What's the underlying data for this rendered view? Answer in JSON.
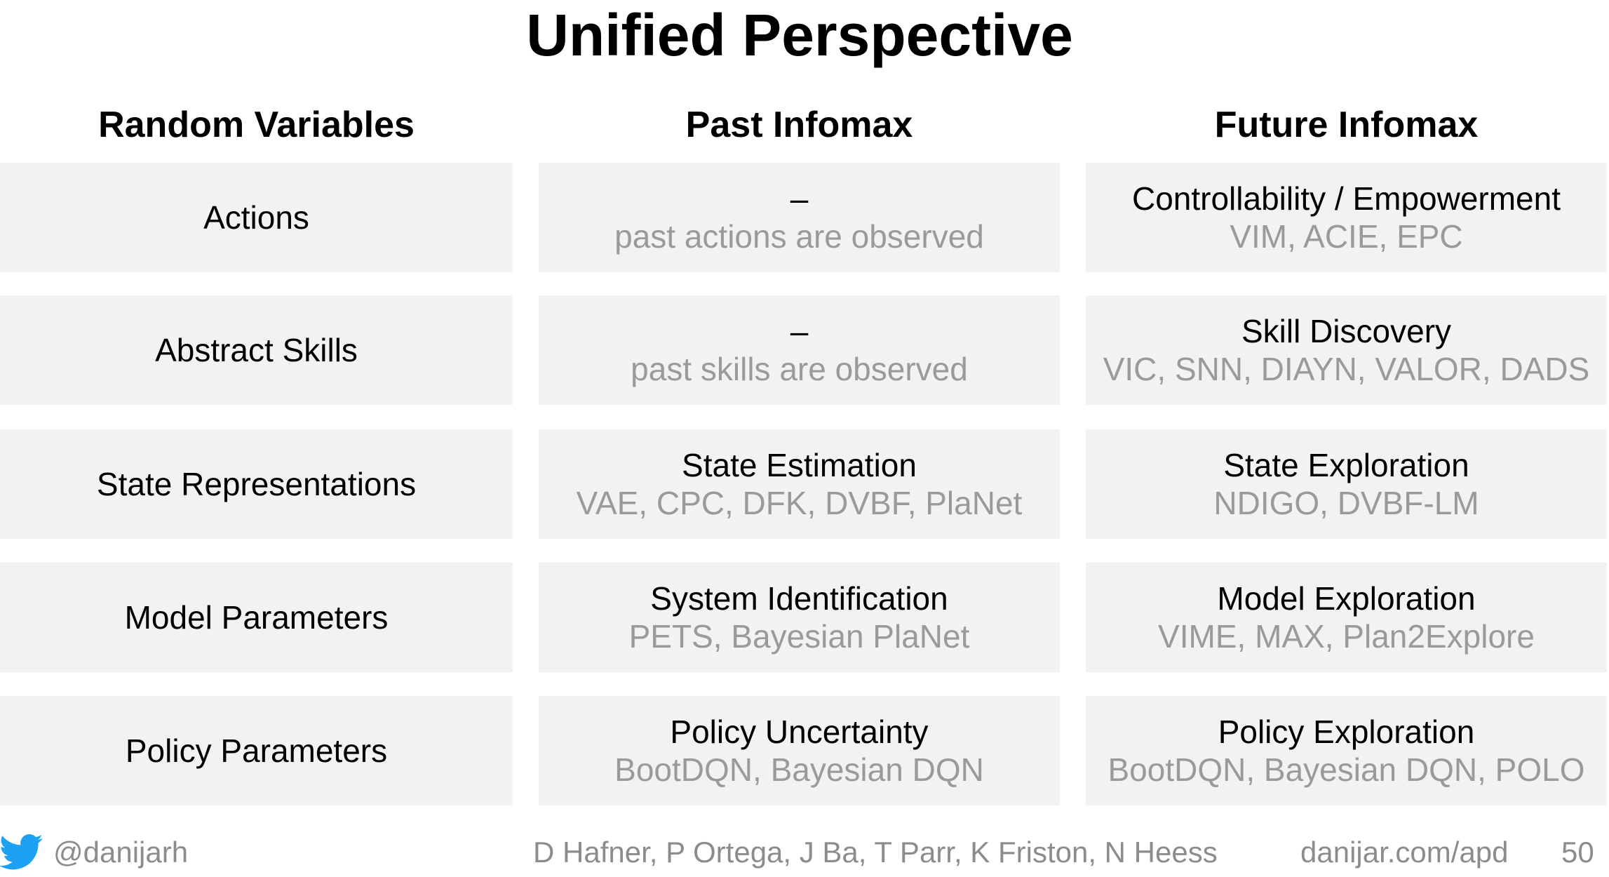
{
  "title": "Unified Perspective",
  "columns": [
    "Random Variables",
    "Past Infomax",
    "Future Infomax"
  ],
  "rows": [
    {
      "label": "Actions",
      "past": {
        "main": "–",
        "sub": "past actions are observed"
      },
      "future": {
        "main": "Controllability / Empowerment",
        "sub": "VIM, ACIE, EPC"
      }
    },
    {
      "label": "Abstract Skills",
      "past": {
        "main": "–",
        "sub": "past skills are observed"
      },
      "future": {
        "main": "Skill Discovery",
        "sub": "VIC, SNN, DIAYN, VALOR, DADS"
      }
    },
    {
      "label": "State Representations",
      "past": {
        "main": "State Estimation",
        "sub": "VAE, CPC, DFK, DVBF, PlaNet"
      },
      "future": {
        "main": "State Exploration",
        "sub": "NDIGO, DVBF-LM"
      }
    },
    {
      "label": "Model Parameters",
      "past": {
        "main": "System Identification",
        "sub": "PETS, Bayesian PlaNet"
      },
      "future": {
        "main": "Model Exploration",
        "sub": "VIME, MAX, Plan2Explore"
      }
    },
    {
      "label": "Policy Parameters",
      "past": {
        "main": "Policy Uncertainty",
        "sub": "BootDQN, Bayesian DQN"
      },
      "future": {
        "main": "Policy Exploration",
        "sub": "BootDQN, Bayesian DQN, POLO"
      }
    }
  ],
  "footer": {
    "handle": "@danijarh",
    "authors": "D Hafner, P Ortega, J Ba, T Parr, K Friston, N Heess",
    "url": "danijar.com/apd",
    "page": "50",
    "icon": "twitter-bird-icon",
    "icon_color": "#1da1f2"
  }
}
